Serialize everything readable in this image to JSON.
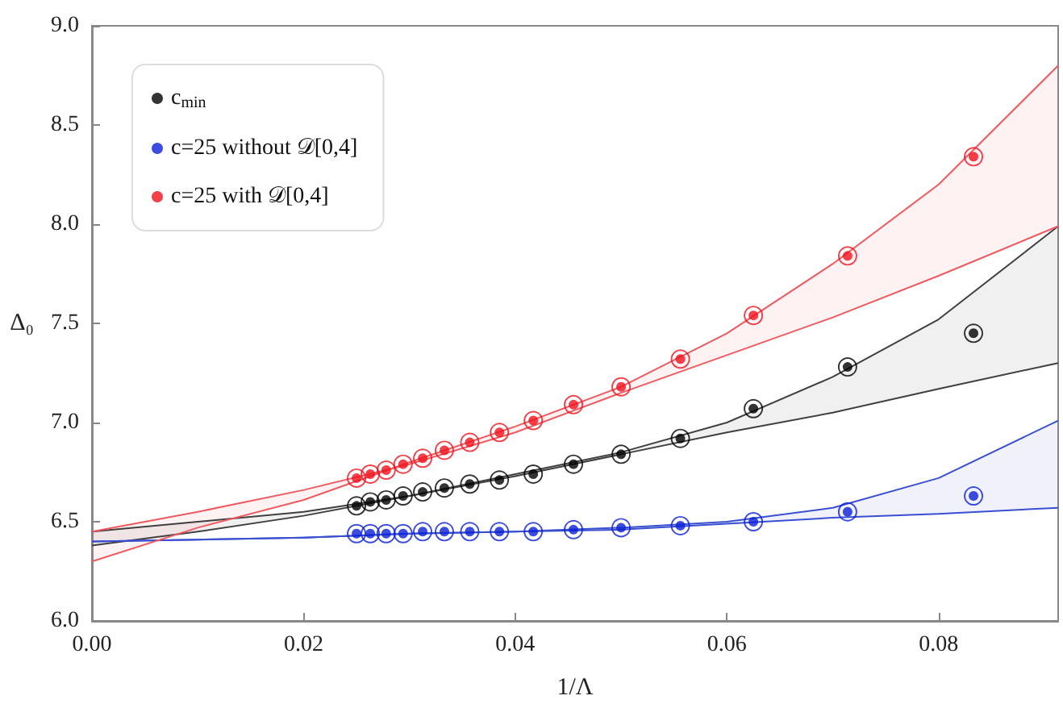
{
  "chart_data": {
    "type": "scatter",
    "xlabel": "1/Λ",
    "ylabel": "Δ₀",
    "xlim": [
      0,
      0.0913
    ],
    "ylim": [
      6.0,
      9.0
    ],
    "xticks": [
      {
        "value": 0,
        "label": "0.00"
      },
      0.02,
      0.04,
      0.06,
      0.08
    ],
    "yticks": [
      {
        "value": 6,
        "label": "6.0"
      },
      6.5,
      {
        "value": 7,
        "label": "7.0"
      },
      7.5,
      {
        "value": 8,
        "label": "8.0"
      },
      8.5,
      {
        "value": 9,
        "label": "9.0"
      }
    ],
    "grid": false,
    "legend": "top left",
    "marker": "circle",
    "x": [
      0.025,
      0.0263,
      0.0278,
      0.0294,
      0.03125,
      0.0333,
      0.0357,
      0.0385,
      0.0417,
      0.0455,
      0.05,
      0.0556,
      0.0625,
      0.0714,
      0.0833
    ],
    "series": [
      {
        "name": "c$_{min}$",
        "color": "#000000",
        "values": [
          6.58,
          6.6,
          6.61,
          6.63,
          6.65,
          6.67,
          6.69,
          6.71,
          6.74,
          6.79,
          6.84,
          6.92,
          7.07,
          7.28,
          7.45
        ]
      },
      {
        "name": "c=25 without 𝒟[0,4]",
        "color": "#0a1fd6",
        "values": [
          6.44,
          6.44,
          6.44,
          6.44,
          6.45,
          6.45,
          6.45,
          6.45,
          6.45,
          6.46,
          6.47,
          6.48,
          6.5,
          6.55,
          6.63
        ]
      },
      {
        "name": "c=25 with 𝒟[0,4]",
        "color": "#f0101c",
        "values": [
          6.72,
          6.74,
          6.76,
          6.79,
          6.82,
          6.86,
          6.9,
          6.95,
          7.01,
          7.09,
          7.18,
          7.32,
          7.54,
          7.84,
          8.34
        ]
      },
      {
        "type": "line",
        "marker": "none",
        "color": "#404040",
        "x": [
          0,
          0.01,
          0.02,
          0.03,
          0.04,
          0.05,
          0.06,
          0.07,
          0.08,
          0.0913
        ],
        "values": [
          6.38,
          6.45,
          6.53,
          6.63,
          6.74,
          6.85,
          7.0,
          7.23,
          7.52,
          7.99
        ],
        "lower": [
          6.45,
          6.5,
          6.55,
          6.63,
          6.73,
          6.84,
          6.95,
          7.05,
          7.17,
          7.3
        ],
        "upper": [
          6.38,
          6.45,
          6.53,
          6.63,
          6.74,
          6.85,
          7.0,
          7.23,
          7.52,
          7.99
        ]
      },
      {
        "type": "line",
        "marker": "none",
        "color": "#404040",
        "x": [
          0,
          0.01,
          0.02,
          0.03,
          0.04,
          0.05,
          0.06,
          0.07,
          0.08,
          0.0913
        ],
        "values": [
          6.45,
          6.5,
          6.55,
          6.63,
          6.73,
          6.84,
          6.95,
          7.05,
          7.17,
          7.3
        ]
      },
      {
        "type": "line",
        "marker": "none",
        "color": "#3a4fd0",
        "x": [
          0,
          0.01,
          0.02,
          0.03,
          0.04,
          0.05,
          0.06,
          0.07,
          0.08,
          0.0913
        ],
        "values": [
          6.4,
          6.41,
          6.42,
          6.44,
          6.45,
          6.47,
          6.5,
          6.57,
          6.72,
          7.01
        ],
        "lower": [
          6.4,
          6.41,
          6.42,
          6.44,
          6.45,
          6.46,
          6.49,
          6.52,
          6.54,
          6.57
        ],
        "upper": [
          6.4,
          6.41,
          6.42,
          6.44,
          6.45,
          6.47,
          6.5,
          6.57,
          6.72,
          7.01
        ]
      },
      {
        "type": "line",
        "marker": "none",
        "color": "#3a4fd0",
        "x": [
          0,
          0.01,
          0.02,
          0.03,
          0.04,
          0.05,
          0.06,
          0.07,
          0.08,
          0.0913
        ],
        "values": [
          6.4,
          6.41,
          6.42,
          6.44,
          6.45,
          6.46,
          6.49,
          6.52,
          6.54,
          6.57
        ]
      },
      {
        "type": "line",
        "marker": "none",
        "color": "#f05a60",
        "x": [
          0,
          0.01,
          0.02,
          0.03,
          0.04,
          0.05,
          0.06,
          0.07,
          0.08,
          0.0913
        ],
        "values": [
          6.3,
          6.47,
          6.61,
          6.8,
          6.98,
          7.18,
          7.45,
          7.8,
          8.2,
          8.8
        ],
        "lower": [
          6.45,
          6.55,
          6.66,
          6.79,
          6.95,
          7.15,
          7.34,
          7.53,
          7.74,
          7.99
        ],
        "upper": [
          6.3,
          6.47,
          6.61,
          6.8,
          6.98,
          7.18,
          7.45,
          7.8,
          8.2,
          8.8
        ]
      },
      {
        "type": "line",
        "marker": "none",
        "color": "#f05a60",
        "x": [
          0,
          0.01,
          0.02,
          0.03,
          0.04,
          0.05,
          0.06,
          0.07,
          0.08,
          0.0913
        ],
        "values": [
          6.45,
          6.55,
          6.66,
          6.79,
          6.95,
          7.15,
          7.34,
          7.53,
          7.74,
          7.99
        ]
      }
    ]
  }
}
